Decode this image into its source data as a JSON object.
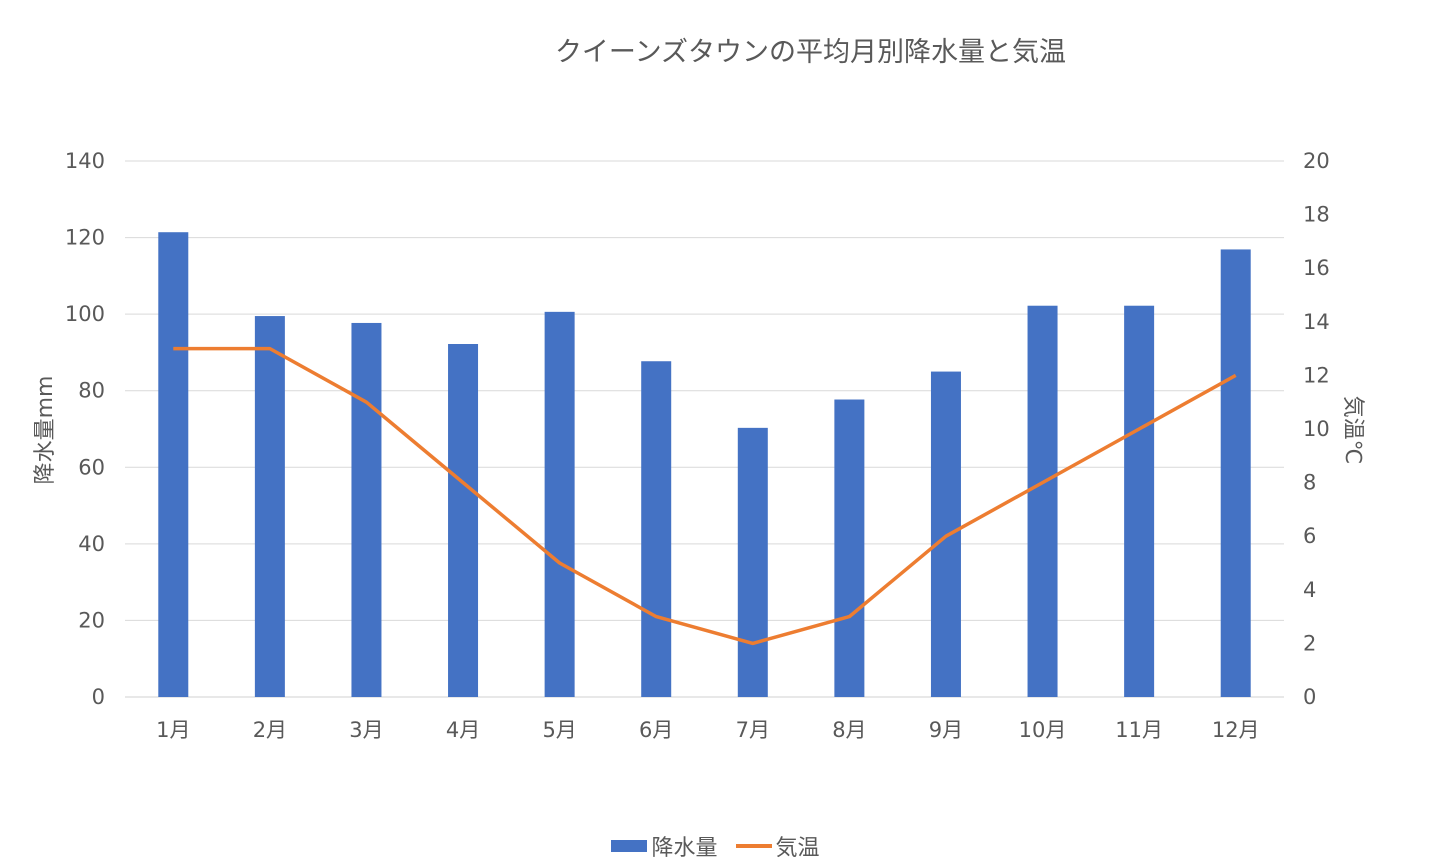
{
  "chart_data": {
    "type": "bar+line",
    "title": "クイーンズタウンの平均月別降水量と気温",
    "categories": [
      "1月",
      "2月",
      "3月",
      "4月",
      "5月",
      "6月",
      "7月",
      "8月",
      "9月",
      "10月",
      "11月",
      "12月"
    ],
    "series": [
      {
        "name": "降水量",
        "type": "bar",
        "axis": "left",
        "color": "#4472C4",
        "values": [
          121.4,
          99.5,
          97.7,
          92.2,
          100.6,
          87.7,
          70.3,
          77.7,
          85.0,
          102.2,
          102.2,
          116.9
        ]
      },
      {
        "name": "気温",
        "type": "line",
        "axis": "right",
        "color": "#ED7D31",
        "values": [
          13,
          13,
          11,
          8,
          5,
          3,
          2,
          3,
          6,
          8,
          10,
          12
        ]
      }
    ],
    "ylabel": "降水量mm",
    "y2label": "気温℃",
    "ylim": [
      0,
      140
    ],
    "yticks": [
      0,
      20,
      40,
      60,
      80,
      100,
      120,
      140
    ],
    "y2lim": [
      0,
      20
    ],
    "y2ticks": [
      0,
      2,
      4,
      6,
      8,
      10,
      12,
      14,
      16,
      18,
      20
    ],
    "grid": true,
    "legend": "bottom"
  }
}
